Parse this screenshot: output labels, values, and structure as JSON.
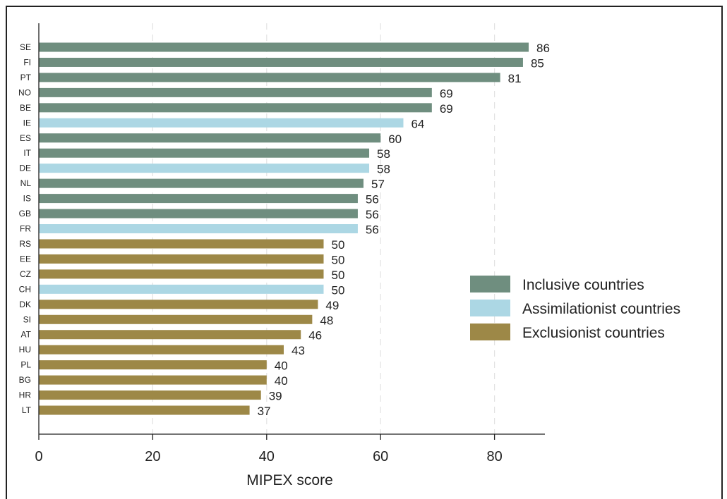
{
  "chart_data": {
    "type": "bar",
    "orientation": "horizontal",
    "xlabel": "MIPEX score",
    "ylabel": "",
    "xlim": [
      0,
      89
    ],
    "xticks": [
      0,
      20,
      40,
      60,
      80
    ],
    "grid": "vertical dashed",
    "legend_position": "right",
    "categories": [
      "SE",
      "FI",
      "PT",
      "NO",
      "BE",
      "IE",
      "ES",
      "IT",
      "DE",
      "NL",
      "IS",
      "GB",
      "FR",
      "RS",
      "EE",
      "CZ",
      "CH",
      "DK",
      "SI",
      "AT",
      "HU",
      "PL",
      "BG",
      "HR",
      "LT"
    ],
    "values": [
      86,
      85,
      81,
      69,
      69,
      64,
      60,
      58,
      58,
      57,
      56,
      56,
      56,
      50,
      50,
      50,
      50,
      49,
      48,
      46,
      43,
      40,
      40,
      39,
      37
    ],
    "groups": [
      "Inclusive countries",
      "Inclusive countries",
      "Inclusive countries",
      "Inclusive countries",
      "Inclusive countries",
      "Assimilationist countries",
      "Inclusive countries",
      "Inclusive countries",
      "Assimilationist countries",
      "Inclusive countries",
      "Inclusive countries",
      "Inclusive countries",
      "Assimilationist countries",
      "Exclusionist countries",
      "Exclusionist countries",
      "Exclusionist countries",
      "Assimilationist countries",
      "Exclusionist countries",
      "Exclusionist countries",
      "Exclusionist countries",
      "Exclusionist countries",
      "Exclusionist countries",
      "Exclusionist countries",
      "Exclusionist countries",
      "Exclusionist countries"
    ],
    "legend": [
      {
        "name": "Inclusive countries",
        "color": "#6f8e7f"
      },
      {
        "name": "Assimilationist countries",
        "color": "#acd7e4"
      },
      {
        "name": "Exclusionist countries",
        "color": "#9d8847"
      }
    ]
  }
}
